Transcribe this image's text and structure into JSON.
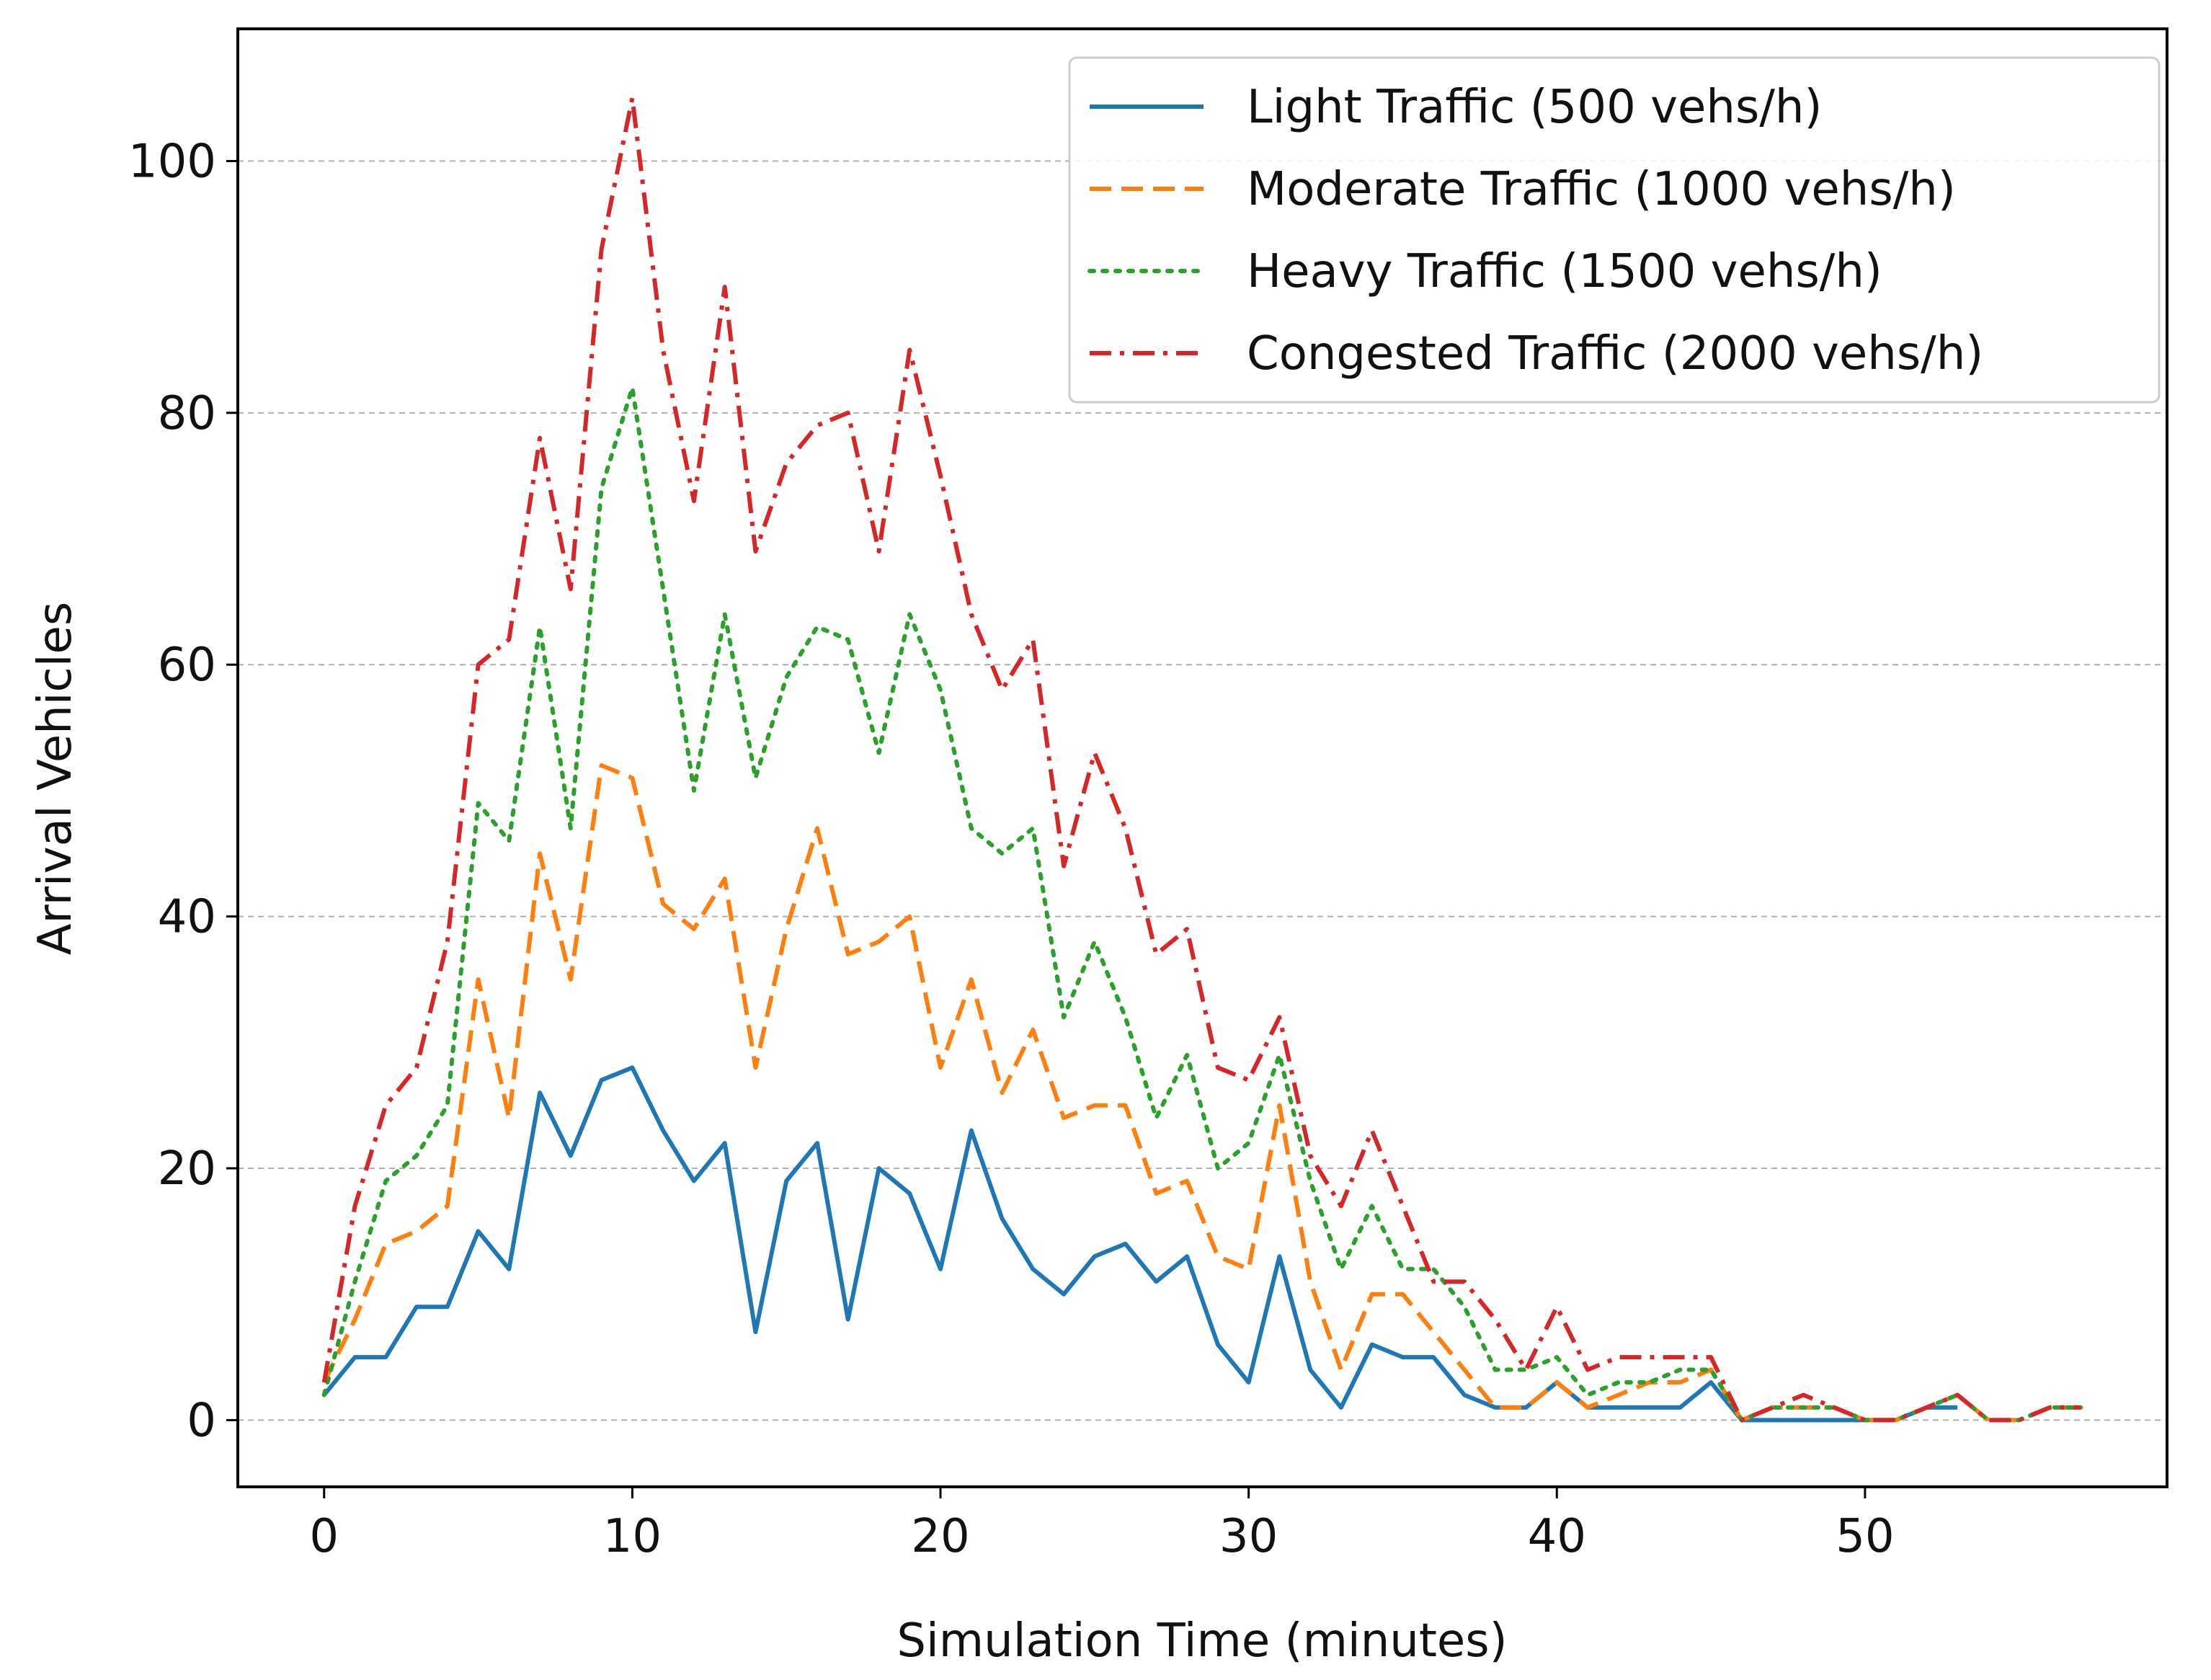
{
  "chart_data": {
    "type": "line",
    "title": "",
    "xlabel": "Simulation Time (minutes)",
    "ylabel": "Arrival Vehicles",
    "xlim": [
      -2.8,
      59.8
    ],
    "ylim": [
      -5.3,
      110.5
    ],
    "xticks": [
      0,
      10,
      20,
      30,
      40,
      50
    ],
    "yticks": [
      0,
      20,
      40,
      60,
      80,
      100
    ],
    "grid": "horizontal-dashed",
    "legend_position": "top-right",
    "x": [
      0,
      1,
      2,
      3,
      4,
      5,
      6,
      7,
      8,
      9,
      10,
      11,
      12,
      13,
      14,
      15,
      16,
      17,
      18,
      19,
      20,
      21,
      22,
      23,
      24,
      25,
      26,
      27,
      28,
      29,
      30,
      31,
      32,
      33,
      34,
      35,
      36,
      37,
      38,
      39,
      40,
      41,
      42,
      43,
      44,
      45,
      46,
      47,
      48,
      49,
      50,
      51,
      52,
      53,
      54,
      55,
      56,
      57
    ],
    "series": [
      {
        "name": "Light Traffic (500 vehs/h)",
        "color": "#1f77b4",
        "style": "solid",
        "values": [
          2,
          5,
          5,
          9,
          9,
          15,
          12,
          26,
          21,
          27,
          28,
          23,
          19,
          22,
          7,
          19,
          22,
          8,
          20,
          18,
          12,
          23,
          16,
          12,
          10,
          13,
          14,
          11,
          13,
          6,
          3,
          13,
          4,
          1,
          6,
          5,
          5,
          2,
          1,
          1,
          3,
          1,
          1,
          1,
          1,
          3,
          0,
          0,
          0,
          0,
          0,
          0,
          1,
          1,
          null,
          null,
          null,
          null
        ]
      },
      {
        "name": "Moderate Traffic (1000 vehs/h)",
        "color": "#ff7f0e",
        "style": "dashed",
        "values": [
          3,
          8,
          14,
          15,
          17,
          35,
          24,
          45,
          35,
          52,
          51,
          41,
          39,
          43,
          28,
          39,
          47,
          37,
          38,
          40,
          28,
          35,
          26,
          31,
          24,
          25,
          25,
          18,
          19,
          13,
          12,
          25,
          11,
          4,
          10,
          10,
          7,
          4,
          1,
          1,
          3,
          1,
          2,
          3,
          3,
          4,
          0,
          1,
          1,
          1,
          0,
          0,
          1,
          2,
          0,
          0,
          1,
          1
        ]
      },
      {
        "name": "Heavy Traffic (1500 vehs/h)",
        "color": "#2ca02c",
        "style": "dotted",
        "values": [
          2,
          11,
          19,
          21,
          25,
          49,
          46,
          63,
          47,
          74,
          82,
          66,
          50,
          64,
          51,
          59,
          63,
          62,
          53,
          64,
          58,
          47,
          45,
          47,
          32,
          38,
          32,
          24,
          29,
          20,
          22,
          29,
          19,
          12,
          17,
          12,
          12,
          9,
          4,
          4,
          5,
          2,
          3,
          3,
          4,
          4,
          0,
          1,
          1,
          1,
          0,
          0,
          1,
          2,
          0,
          0,
          1,
          1
        ]
      },
      {
        "name": "Congested Traffic (2000 vehs/h)",
        "color": "#d62728",
        "style": "dashdot",
        "values": [
          3,
          17,
          25,
          28,
          38,
          60,
          62,
          78,
          66,
          93,
          105,
          85,
          73,
          90,
          69,
          76,
          79,
          80,
          69,
          85,
          75,
          64,
          58,
          62,
          44,
          53,
          47,
          37,
          39,
          28,
          27,
          32,
          21,
          17,
          23,
          17,
          11,
          11,
          8,
          4,
          9,
          4,
          5,
          5,
          5,
          5,
          0,
          1,
          2,
          1,
          0,
          0,
          1,
          2,
          0,
          0,
          1,
          1
        ]
      }
    ]
  }
}
